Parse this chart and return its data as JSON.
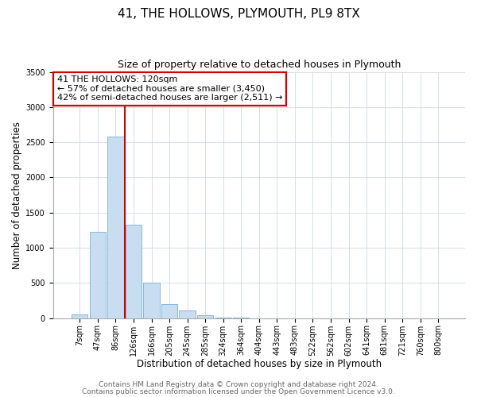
{
  "title": "41, THE HOLLOWS, PLYMOUTH, PL9 8TX",
  "subtitle": "Size of property relative to detached houses in Plymouth",
  "xlabel": "Distribution of detached houses by size in Plymouth",
  "ylabel": "Number of detached properties",
  "bar_labels": [
    "7sqm",
    "47sqm",
    "86sqm",
    "126sqm",
    "166sqm",
    "205sqm",
    "245sqm",
    "285sqm",
    "324sqm",
    "364sqm",
    "404sqm",
    "443sqm",
    "483sqm",
    "522sqm",
    "562sqm",
    "602sqm",
    "641sqm",
    "681sqm",
    "721sqm",
    "760sqm",
    "800sqm"
  ],
  "bar_values": [
    50,
    1230,
    2580,
    1330,
    500,
    195,
    110,
    40,
    10,
    5,
    2,
    0,
    0,
    0,
    0,
    0,
    0,
    0,
    0,
    0,
    0
  ],
  "bar_color": "#c9ddf0",
  "bar_edge_color": "#7aafd4",
  "ylim": [
    0,
    3500
  ],
  "yticks": [
    0,
    500,
    1000,
    1500,
    2000,
    2500,
    3000,
    3500
  ],
  "vline_color": "#cc0000",
  "annotation_title": "41 THE HOLLOWS: 120sqm",
  "annotation_line1": "← 57% of detached houses are smaller (3,450)",
  "annotation_line2": "42% of semi-detached houses are larger (2,511) →",
  "box_color": "#cc0000",
  "footnote1": "Contains HM Land Registry data © Crown copyright and database right 2024.",
  "footnote2": "Contains public sector information licensed under the Open Government Licence v3.0.",
  "title_fontsize": 11,
  "subtitle_fontsize": 9,
  "xlabel_fontsize": 8.5,
  "ylabel_fontsize": 8.5,
  "tick_fontsize": 7,
  "annotation_fontsize": 8,
  "footnote_fontsize": 6.5
}
